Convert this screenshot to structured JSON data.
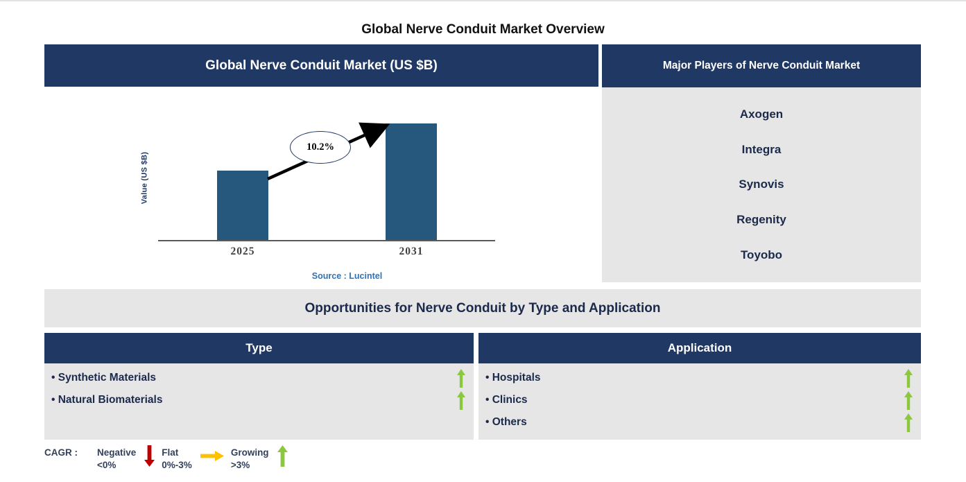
{
  "page": {
    "title": "Global Nerve Conduit Market Overview"
  },
  "market_chart": {
    "header": "Global Nerve Conduit Market (US $B)",
    "ylabel": "Value (US $B)",
    "cagr_label": "10.2%",
    "source": "Source : Lucintel",
    "years": {
      "start": "2025",
      "end": "2031"
    }
  },
  "chart_data": {
    "type": "bar",
    "title": "Global Nerve Conduit Market (US $B)",
    "categories": [
      "2025",
      "2031"
    ],
    "values_relative": [
      0.6,
      1.0
    ],
    "ylabel": "Value (US $B)",
    "xlabel": "",
    "annotation": "10.2% CAGR arrow from 2025 bar to 2031 bar",
    "grid": false,
    "legend": false,
    "bar_color": "#26587D",
    "source": "Source : Lucintel"
  },
  "players": {
    "header": "Major Players of Nerve Conduit Market",
    "items": [
      "Axogen",
      "Integra",
      "Synovis",
      "Regenity",
      "Toyobo"
    ]
  },
  "opportunities": {
    "title": "Opportunities for Nerve Conduit by Type and Application",
    "type": {
      "header": "Type",
      "items": [
        {
          "label": "Synthetic Materials",
          "trend": "growing"
        },
        {
          "label": "Natural Biomaterials",
          "trend": "growing"
        }
      ]
    },
    "application": {
      "header": "Application",
      "items": [
        {
          "label": "Hospitals",
          "trend": "growing"
        },
        {
          "label": "Clinics",
          "trend": "growing"
        },
        {
          "label": "Others",
          "trend": "growing"
        }
      ]
    }
  },
  "legend": {
    "title": "CAGR :",
    "items": [
      {
        "label": "Negative",
        "range": "<0%",
        "direction": "down",
        "color": "#C00000"
      },
      {
        "label": "Flat",
        "range": "0%-3%",
        "direction": "right",
        "color": "#FFC000"
      },
      {
        "label": "Growing",
        "range": ">3%",
        "direction": "up",
        "color": "#8DC63F"
      }
    ]
  },
  "colors": {
    "navy_header": "#1F3864",
    "panel_gray": "#E6E6E6",
    "bar_blue": "#26587D",
    "source_blue": "#2E74B5",
    "dark_text": "#1B2A4A",
    "tick_gray": "#404040",
    "negative_red": "#C00000",
    "flat_amber": "#FFC000",
    "growing_green": "#8DC63F"
  }
}
